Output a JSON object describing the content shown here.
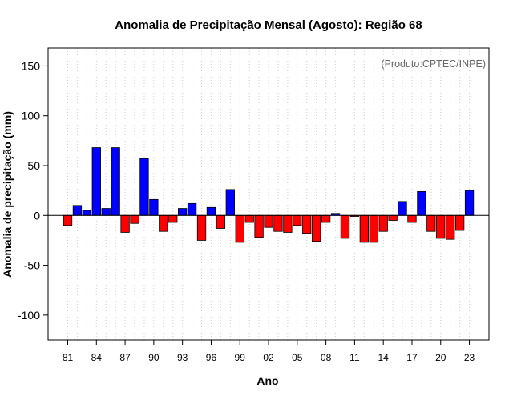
{
  "chart_data": {
    "type": "bar",
    "title": "Anomalia de Precipitação Mensal (Agosto): Região 68",
    "xlabel": "Ano",
    "ylabel": "Anomalia de precipitação (mm)",
    "annotation": "(Produto:CPTEC/INPE)",
    "ylim": [
      -125,
      168
    ],
    "yticks": [
      -100,
      -50,
      0,
      50,
      100,
      150
    ],
    "grid": "vertical-dotted",
    "positive_color": "#0000ff",
    "negative_color": "#ff0000",
    "categories": [
      "81",
      "82",
      "83",
      "84",
      "85",
      "86",
      "87",
      "88",
      "89",
      "90",
      "91",
      "92",
      "93",
      "94",
      "95",
      "96",
      "97",
      "98",
      "99",
      "00",
      "01",
      "02",
      "03",
      "04",
      "05",
      "06",
      "07",
      "08",
      "09",
      "10",
      "11",
      "12",
      "13",
      "14",
      "15",
      "16",
      "17",
      "18",
      "19",
      "20",
      "21",
      "22",
      "23"
    ],
    "xtick_labels": [
      "81",
      "84",
      "87",
      "90",
      "93",
      "96",
      "99",
      "02",
      "05",
      "08",
      "11",
      "14",
      "17",
      "20",
      "23"
    ],
    "values": [
      -10,
      10,
      5,
      68,
      7,
      68,
      -17,
      -8,
      57,
      16,
      -16,
      -7,
      7,
      12,
      -25,
      8,
      -13,
      26,
      -27,
      -7,
      -22,
      -12,
      -16,
      -17,
      -10,
      -18,
      -26,
      -7,
      2,
      -23,
      -1,
      -27,
      -27,
      -16,
      -5,
      14,
      -7,
      24,
      -16,
      -23,
      -24,
      -15,
      25
    ]
  }
}
